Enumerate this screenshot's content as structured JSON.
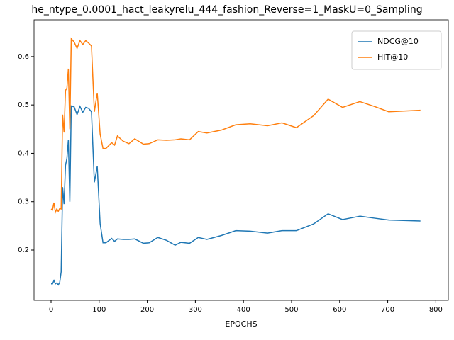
{
  "chart_data": {
    "type": "line",
    "title": "he_ntype_0.0001_hact_leakyrelu_444_fashion_Reverse=1_MaskU=0_Sampling",
    "x_label": "EPOCHS",
    "x": [
      0,
      3,
      6,
      9,
      12,
      15,
      18,
      21,
      24,
      27,
      30,
      33,
      36,
      39,
      42,
      48,
      54,
      60,
      66,
      72,
      78,
      84,
      90,
      96,
      102,
      108,
      114,
      126,
      132,
      138,
      150,
      162,
      174,
      192,
      204,
      222,
      240,
      258,
      270,
      288,
      306,
      324,
      354,
      384,
      414,
      450,
      480,
      510,
      546,
      576,
      606,
      642,
      672,
      702,
      768
    ],
    "series": [
      {
        "name": "NDCG@10",
        "color": "#1f77b4",
        "values": [
          0.13,
          0.13,
          0.137,
          0.13,
          0.132,
          0.128,
          0.133,
          0.155,
          0.33,
          0.295,
          0.375,
          0.39,
          0.428,
          0.3,
          0.498,
          0.496,
          0.48,
          0.497,
          0.485,
          0.495,
          0.493,
          0.486,
          0.34,
          0.373,
          0.255,
          0.215,
          0.215,
          0.224,
          0.218,
          0.223,
          0.222,
          0.222,
          0.223,
          0.214,
          0.215,
          0.226,
          0.22,
          0.21,
          0.216,
          0.214,
          0.226,
          0.222,
          0.23,
          0.24,
          0.239,
          0.235,
          0.24,
          0.24,
          0.254,
          0.275,
          0.263,
          0.27,
          0.266,
          0.262,
          0.26
        ]
      },
      {
        "name": "HIT@10",
        "color": "#ff7f0e",
        "values": [
          0.285,
          0.283,
          0.298,
          0.278,
          0.285,
          0.28,
          0.286,
          0.285,
          0.48,
          0.443,
          0.53,
          0.535,
          0.575,
          0.45,
          0.637,
          0.63,
          0.617,
          0.633,
          0.625,
          0.633,
          0.628,
          0.622,
          0.486,
          0.525,
          0.44,
          0.41,
          0.41,
          0.422,
          0.417,
          0.436,
          0.425,
          0.42,
          0.43,
          0.419,
          0.42,
          0.428,
          0.427,
          0.428,
          0.43,
          0.428,
          0.445,
          0.442,
          0.448,
          0.459,
          0.461,
          0.457,
          0.463,
          0.453,
          0.478,
          0.512,
          0.495,
          0.507,
          0.497,
          0.486,
          0.489
        ]
      }
    ],
    "xlim": [
      -35.4,
      826
    ],
    "xticks": [
      0,
      100,
      200,
      300,
      400,
      500,
      600,
      700,
      800
    ],
    "ylim": [
      0.096,
      0.676
    ],
    "yticks": [
      0.2,
      0.3,
      0.4,
      0.5,
      0.6
    ],
    "legend": "upper right"
  }
}
